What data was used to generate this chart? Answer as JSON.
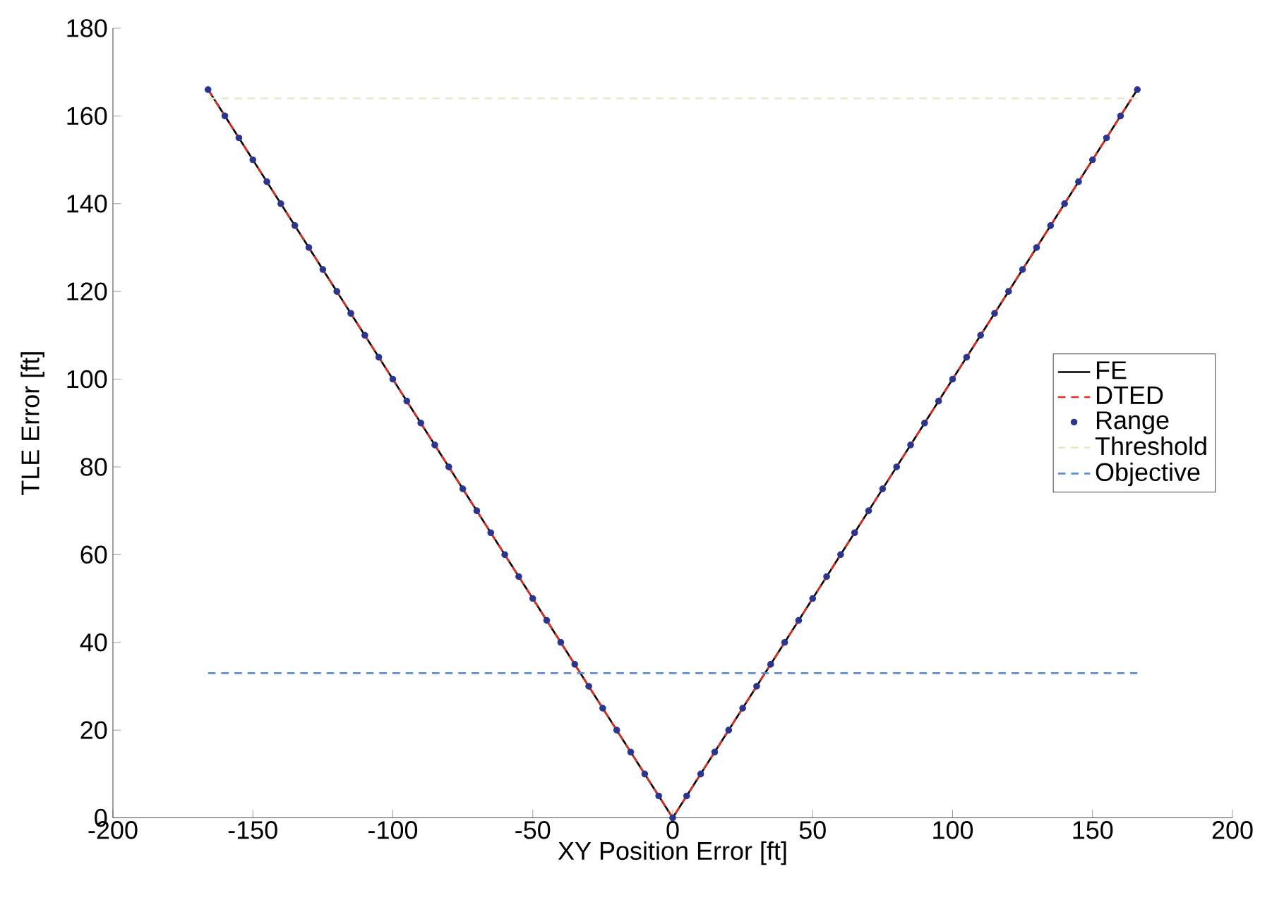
{
  "chart_data": {
    "type": "line",
    "xlabel": "XY Position Error [ft]",
    "ylabel": "TLE Error [ft]",
    "xlim": [
      -200,
      200
    ],
    "ylim": [
      0,
      180
    ],
    "xticks": [
      -200,
      -150,
      -100,
      -50,
      0,
      50,
      100,
      150,
      200
    ],
    "yticks": [
      0,
      20,
      40,
      60,
      80,
      100,
      120,
      140,
      160,
      180
    ],
    "legend": "right",
    "grid": false,
    "series": [
      {
        "name": "FE",
        "color": "#000000",
        "line_style": "solid",
        "marker": "none",
        "x": [
          -166,
          0,
          166
        ],
        "values": [
          166,
          0,
          166
        ]
      },
      {
        "name": "DTED",
        "color": "#e03020",
        "line_style": "dashed",
        "marker": "none",
        "x": [
          -166,
          0,
          166
        ],
        "values": [
          166,
          0,
          166
        ]
      },
      {
        "name": "Range",
        "type": "scatter",
        "color": "#2a3590",
        "marker": "circle",
        "x": [
          -166,
          -160,
          -155,
          -150,
          -145,
          -140,
          -135,
          -130,
          -125,
          -120,
          -115,
          -110,
          -105,
          -100,
          -95,
          -90,
          -85,
          -80,
          -75,
          -70,
          -65,
          -60,
          -55,
          -50,
          -45,
          -40,
          -35,
          -30,
          -25,
          -20,
          -15,
          -10,
          -5,
          0,
          5,
          10,
          15,
          20,
          25,
          30,
          35,
          40,
          45,
          50,
          55,
          60,
          65,
          70,
          75,
          80,
          85,
          90,
          95,
          100,
          105,
          110,
          115,
          120,
          125,
          130,
          135,
          140,
          145,
          150,
          155,
          160,
          166
        ],
        "values": [
          166,
          160,
          155,
          150,
          145,
          140,
          135,
          130,
          125,
          120,
          115,
          110,
          105,
          100,
          95,
          90,
          85,
          80,
          75,
          70,
          65,
          60,
          55,
          50,
          45,
          40,
          35,
          30,
          25,
          20,
          15,
          10,
          5,
          0,
          5,
          10,
          15,
          20,
          25,
          30,
          35,
          40,
          45,
          50,
          55,
          60,
          65,
          70,
          75,
          80,
          85,
          90,
          95,
          100,
          105,
          110,
          115,
          120,
          125,
          130,
          135,
          140,
          145,
          150,
          155,
          160,
          166
        ]
      },
      {
        "name": "Threshold",
        "color": "#ece8c8",
        "line_style": "dashed",
        "marker": "none",
        "x": [
          -166,
          166
        ],
        "values": [
          164,
          164
        ]
      },
      {
        "name": "Objective",
        "color": "#5b8fd6",
        "line_style": "dashed",
        "marker": "none",
        "x": [
          -166,
          166
        ],
        "values": [
          33,
          33
        ]
      }
    ]
  }
}
